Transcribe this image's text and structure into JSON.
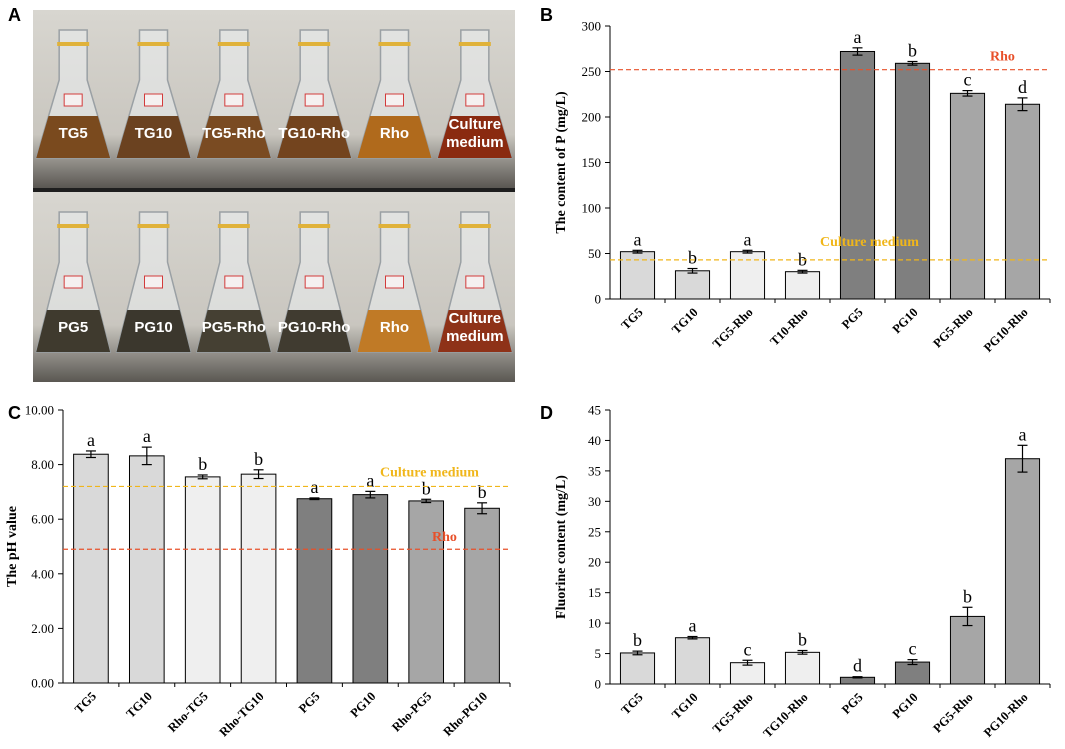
{
  "panels": {
    "a": "A",
    "b": "B",
    "c": "C",
    "d": "D"
  },
  "photo": {
    "top_labels": [
      "TG5",
      "TG10",
      "TG5-Rho",
      "TG10-Rho",
      "Rho",
      "Culture\nmedium"
    ],
    "bottom_labels": [
      "PG5",
      "PG10",
      "PG5-Rho",
      "PG10-Rho",
      "Rho",
      "Culture\nmedium"
    ],
    "top_colors": [
      "#7a4a1e",
      "#6b4220",
      "#7a4b22",
      "#73441e",
      "#b06a1c",
      "#8a2a10"
    ],
    "bottom_colors": [
      "#3f3a2e",
      "#3b372d",
      "#454033",
      "#403b30",
      "#c07a26",
      "#8e3218"
    ]
  },
  "chart_data": [
    {
      "id": "B",
      "type": "bar",
      "ylabel": "The content of P (mg/L)",
      "ylim": [
        0,
        300
      ],
      "yticks": [
        0,
        50,
        100,
        150,
        200,
        250,
        300
      ],
      "ytick_labels": [
        "0",
        "50",
        "100",
        "150",
        "200",
        "250",
        "300"
      ],
      "categories": [
        "TG5",
        "TG10",
        "TG5-Rho",
        "T10-Rho",
        "PG5",
        "PG10",
        "PG5-Rho",
        "PG10-Rho"
      ],
      "values": [
        52,
        31,
        52,
        30,
        272,
        259,
        226,
        214
      ],
      "errors": [
        1.5,
        2.5,
        1.5,
        1.5,
        4,
        2,
        3,
        7
      ],
      "letters": [
        "a",
        "b",
        "a",
        "b",
        "a",
        "b",
        "c",
        "d"
      ],
      "colors": [
        "#d9d9d9",
        "#d9d9d9",
        "#efefef",
        "#efefef",
        "#7f7f7f",
        "#7f7f7f",
        "#a6a6a6",
        "#a6a6a6"
      ],
      "reference_lines": [
        {
          "label": "Rho",
          "value": 252,
          "color": "#e8502a"
        },
        {
          "label": "Culture medium",
          "value": 43,
          "color": "#f0b61a"
        }
      ]
    },
    {
      "id": "C",
      "type": "bar",
      "ylabel": "The pH value",
      "ylim": [
        0,
        10
      ],
      "yticks": [
        0,
        2,
        4,
        6,
        8,
        10
      ],
      "ytick_labels": [
        "0.00",
        "2.00",
        "4.00",
        "6.00",
        "8.00",
        "10.00"
      ],
      "categories": [
        "TG5",
        "TG10",
        "Rho-TG5",
        "Rho-TG10",
        "PG5",
        "PG10",
        "Rho-PG5",
        "Rho-PG10"
      ],
      "values": [
        8.38,
        8.32,
        7.55,
        7.65,
        6.75,
        6.9,
        6.67,
        6.4
      ],
      "errors": [
        0.12,
        0.32,
        0.07,
        0.16,
        0.03,
        0.12,
        0.06,
        0.2
      ],
      "letters": [
        "a",
        "a",
        "b",
        "b",
        "a",
        "a",
        "b",
        "b"
      ],
      "colors": [
        "#d9d9d9",
        "#d9d9d9",
        "#efefef",
        "#efefef",
        "#7f7f7f",
        "#7f7f7f",
        "#a6a6a6",
        "#a6a6a6"
      ],
      "reference_lines": [
        {
          "label": "Culture medium",
          "value": 7.2,
          "color": "#f0b61a"
        },
        {
          "label": "Rho",
          "value": 4.9,
          "color": "#e8502a"
        }
      ]
    },
    {
      "id": "D",
      "type": "bar",
      "ylabel": "Fluorine content (mg/L)",
      "ylim": [
        0,
        45
      ],
      "yticks": [
        0,
        5,
        10,
        15,
        20,
        25,
        30,
        35,
        40,
        45
      ],
      "ytick_labels": [
        "0",
        "5",
        "10",
        "15",
        "20",
        "25",
        "30",
        "35",
        "40",
        "45"
      ],
      "categories": [
        "TG5",
        "TG10",
        "TG5-Rho",
        "TG10-Rho",
        "PG5",
        "PG10",
        "PG5-Rho",
        "PG10-Rho"
      ],
      "values": [
        5.1,
        7.6,
        3.5,
        5.2,
        1.1,
        3.6,
        11.1,
        37.0
      ],
      "errors": [
        0.3,
        0.2,
        0.4,
        0.3,
        0.1,
        0.4,
        1.5,
        2.2
      ],
      "letters": [
        "b",
        "a",
        "c",
        "b",
        "d",
        "c",
        "b",
        "a"
      ],
      "colors": [
        "#d9d9d9",
        "#d9d9d9",
        "#efefef",
        "#efefef",
        "#7f7f7f",
        "#7f7f7f",
        "#a6a6a6",
        "#a6a6a6"
      ],
      "reference_lines": []
    }
  ]
}
